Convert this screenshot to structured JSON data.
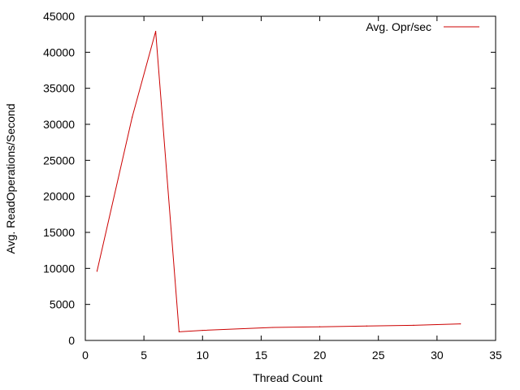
{
  "chart_data": {
    "type": "line",
    "xlabel": "Thread Count",
    "ylabel": "Avg. ReadOperations/Second",
    "xlim": [
      0,
      35
    ],
    "ylim": [
      0,
      45000
    ],
    "x_ticks": [
      0,
      5,
      10,
      15,
      20,
      25,
      30,
      35
    ],
    "y_ticks": [
      0,
      5000,
      10000,
      15000,
      20000,
      25000,
      30000,
      35000,
      40000,
      45000
    ],
    "grid": false,
    "legend_position": "top-right",
    "series": [
      {
        "name": "Avg. Opr/sec",
        "color": "#cc0000",
        "x": [
          1,
          4,
          6,
          8,
          10,
          16,
          20,
          24,
          28,
          32
        ],
        "y": [
          9600,
          31000,
          42900,
          1200,
          1400,
          1800,
          1900,
          2000,
          2100,
          2300
        ]
      }
    ]
  }
}
